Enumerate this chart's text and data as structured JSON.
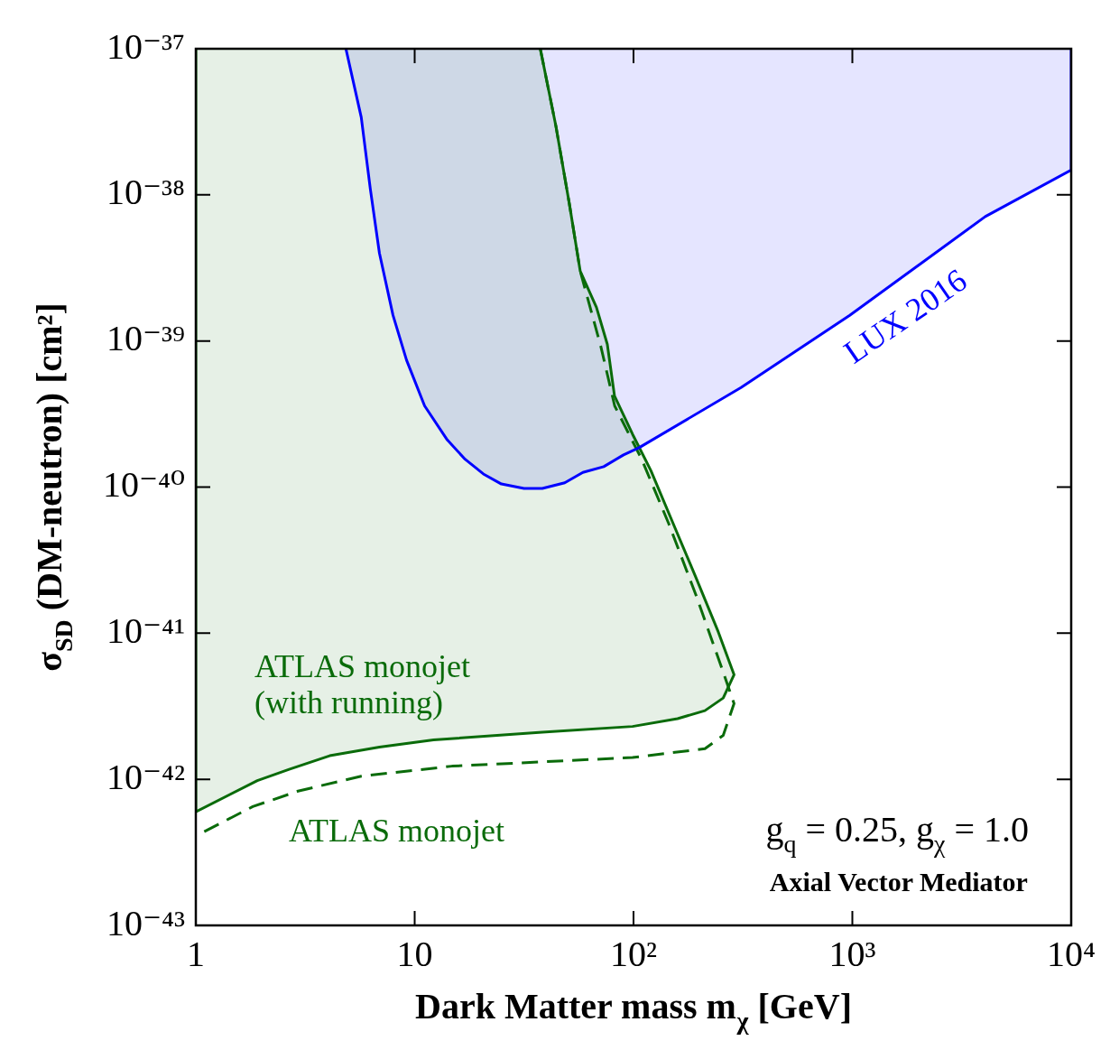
{
  "chart_data": {
    "type": "line",
    "xlabel": "Dark Matter mass m$_{χ}$ [GeV]",
    "ylabel": "σ$_{SD}$ (DM-neutron) [cm²]",
    "log": "xy",
    "xlim": [
      1,
      10000
    ],
    "ylim": [
      1e-43,
      1e-37
    ],
    "xticks": [
      1,
      10,
      {
        "value": 100,
        "label": "10²"
      },
      {
        "value": 1000,
        "label": "10³"
      },
      {
        "value": 10000,
        "label": "10⁴"
      }
    ],
    "yticks": [
      {
        "value": 1e-43,
        "label": "10⁻⁴³"
      },
      {
        "value": 1e-42,
        "label": "10⁻⁴²"
      },
      {
        "value": 1e-41,
        "label": "10⁻⁴¹"
      },
      {
        "value": 1e-40,
        "label": "10⁻⁴⁰"
      },
      {
        "value": 1e-39,
        "label": "10⁻³⁹"
      },
      {
        "value": 1e-38,
        "label": "10⁻³⁸"
      },
      {
        "value": 1e-37,
        "label": "10⁻³⁷"
      }
    ],
    "legend": false,
    "marker": "none",
    "series": [
      {
        "name": "LUX 2016",
        "type": "area",
        "color": "#0000ff",
        "line_style": "solid",
        "x": [
          4.85,
          5.7,
          6.27,
          6.9,
          7.96,
          9.18,
          11.1,
          14.1,
          17,
          20.6,
          24.9,
          31.6,
          38.3,
          48.5,
          58.7,
          73.1,
          90,
          106,
          310,
          973,
          4050,
          10000,
          10000
        ],
        "values": [
          1e-37,
          3.4e-38,
          1.1e-38,
          4e-39,
          1.5e-39,
          7.4e-40,
          3.6e-40,
          2.1e-40,
          1.55e-40,
          1.23e-40,
          1.05e-40,
          9.8e-41,
          9.8e-41,
          1.07e-40,
          1.26e-40,
          1.38e-40,
          1.66e-40,
          1.86e-40,
          4.8e-40,
          1.5e-39,
          7.1e-39,
          1.48e-38,
          1e-37
        ]
      },
      {
        "name": "ATLAS monojet (with running)",
        "type": "area",
        "color": "#0a6b0a",
        "line_style": "solid",
        "x": [
          37.5,
          44.2,
          50.9,
          57.1,
          67.7,
          75.9,
          81.9,
          99,
          120,
          152,
          193,
          244,
          288,
          257,
          212,
          159,
          99,
          38.3,
          12.2,
          6.9,
          4.09,
          2.67,
          1.91,
          1,
          1
        ],
        "values": [
          1e-37,
          2.95e-38,
          8.7e-39,
          3e-39,
          1.7e-39,
          9.5e-40,
          4.2e-40,
          2.3e-40,
          1.3e-40,
          5.6e-41,
          2.4e-41,
          1.02e-41,
          5.2e-42,
          3.6e-42,
          2.95e-42,
          2.6e-42,
          2.3e-42,
          2.1e-42,
          1.86e-42,
          1.66e-42,
          1.45e-42,
          1.17e-42,
          9.8e-43,
          6e-43,
          1e-37
        ]
      },
      {
        "name": "ATLAS monojet",
        "color": "#0a6b0a",
        "line_style": "dashed",
        "x": [
          37.5,
          44.2,
          50.9,
          57.1,
          71,
          82,
          109,
          145,
          193,
          256,
          288,
          257,
          212,
          99,
          14.8,
          5.7,
          2.93,
          1.82,
          1
        ],
        "values": [
          1e-37,
          2.95e-38,
          8.7e-39,
          3e-39,
          9.1e-40,
          3.6e-40,
          1.55e-40,
          5.6e-41,
          1.82e-41,
          5.5e-42,
          3.3e-42,
          2e-42,
          1.62e-42,
          1.41e-42,
          1.23e-42,
          1.05e-42,
          8.3e-43,
          6.5e-43,
          4.1e-43
        ]
      }
    ],
    "annotations": [
      "g$_{q}$ = 0.25, g$_{χ}$ = 1.0",
      "Axial Vector Mediator"
    ]
  }
}
